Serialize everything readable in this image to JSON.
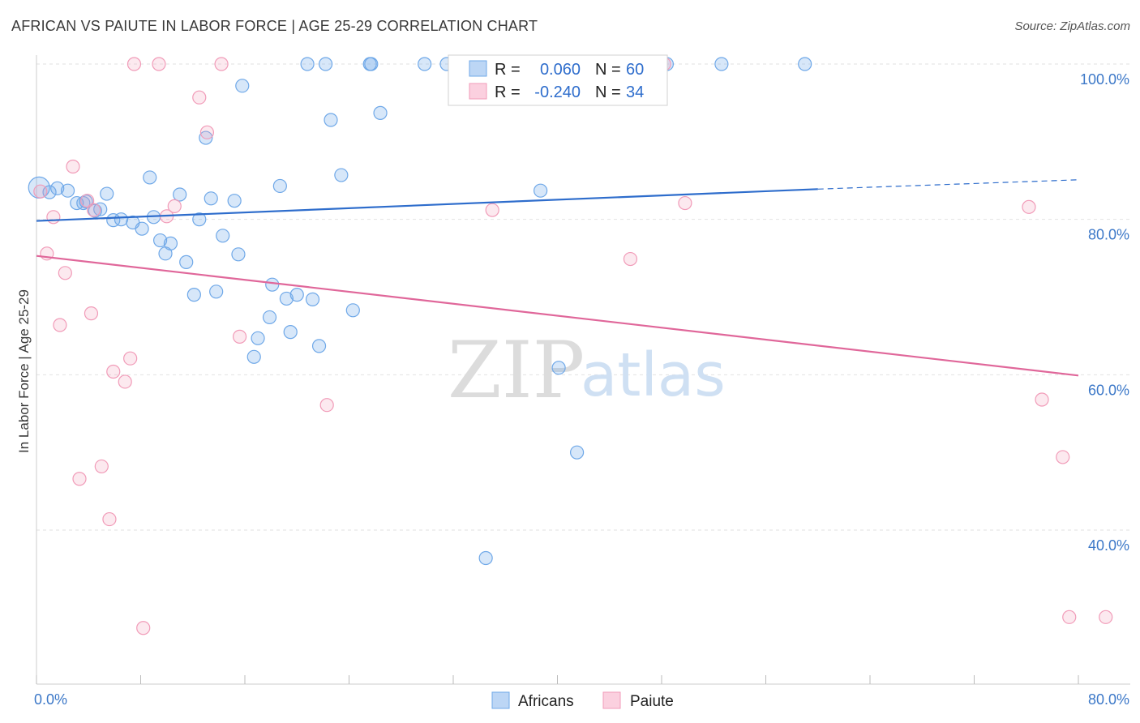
{
  "header": {
    "title": "AFRICAN VS PAIUTE IN LABOR FORCE | AGE 25-29 CORRELATION CHART",
    "source": "Source: ZipAtlas.com"
  },
  "legend": {
    "africans": {
      "r_label": "R =",
      "r_value": "0.060",
      "n_label": "N =",
      "n_value": "60"
    },
    "paiute": {
      "r_label": "R =",
      "r_value": "-0.240",
      "n_label": "N =",
      "n_value": "34"
    }
  },
  "bottom_legend": {
    "africans": "Africans",
    "paiute": "Paiute"
  },
  "watermark": {
    "zip": "ZIP",
    "atlas": "atlas"
  },
  "chart_data": {
    "type": "scatter",
    "title": "AFRICAN VS PAIUTE IN LABOR FORCE | AGE 25-29 CORRELATION CHART",
    "xlabel": "",
    "ylabel": "In Labor Force | Age 25-29",
    "xlim": [
      0,
      80
    ],
    "ylim": [
      20,
      100
    ],
    "x_tick_labels": [
      "0.0%",
      "80.0%"
    ],
    "y_tick_labels": [
      "100.0%",
      "80.0%",
      "60.0%",
      "40.0%"
    ],
    "y_ticks": [
      100,
      80,
      60,
      40
    ],
    "grid": true,
    "colors": {
      "africans": "#6fa8e8",
      "paiute": "#f19bb8",
      "africans_line": "#2e6dcc",
      "paiute_line": "#e0679a"
    },
    "series": [
      {
        "name": "Africans",
        "r": 0.06,
        "n": 60,
        "trend": {
          "x0": 0,
          "y0": 79.8,
          "x1": 60,
          "y1": 83.9,
          "dashed_to_x": 80,
          "dashed_to_y": 85.1
        },
        "points": [
          [
            0.2,
            84.1
          ],
          [
            1.0,
            83.5
          ],
          [
            1.6,
            84.0
          ],
          [
            2.4,
            83.7
          ],
          [
            3.1,
            82.1
          ],
          [
            3.8,
            82.3
          ],
          [
            4.9,
            81.3
          ],
          [
            5.4,
            83.3
          ],
          [
            5.9,
            79.9
          ],
          [
            6.5,
            80.0
          ],
          [
            7.4,
            79.6
          ],
          [
            8.1,
            78.8
          ],
          [
            8.7,
            85.4
          ],
          [
            9.0,
            80.3
          ],
          [
            9.5,
            77.3
          ],
          [
            9.9,
            75.6
          ],
          [
            10.3,
            76.9
          ],
          [
            11.0,
            83.2
          ],
          [
            11.5,
            74.5
          ],
          [
            12.1,
            70.3
          ],
          [
            12.5,
            80.0
          ],
          [
            13.0,
            90.5
          ],
          [
            13.4,
            82.7
          ],
          [
            13.8,
            70.7
          ],
          [
            14.3,
            77.9
          ],
          [
            15.2,
            82.4
          ],
          [
            15.5,
            75.5
          ],
          [
            15.8,
            97.2
          ],
          [
            16.7,
            62.3
          ],
          [
            17.0,
            64.7
          ],
          [
            17.9,
            67.4
          ],
          [
            18.1,
            71.6
          ],
          [
            18.7,
            84.3
          ],
          [
            19.2,
            69.8
          ],
          [
            19.5,
            65.5
          ],
          [
            20.0,
            70.3
          ],
          [
            20.8,
            100.0
          ],
          [
            21.2,
            69.7
          ],
          [
            21.7,
            63.7
          ],
          [
            22.2,
            100.0
          ],
          [
            22.6,
            92.8
          ],
          [
            23.4,
            85.7
          ],
          [
            24.3,
            68.3
          ],
          [
            25.6,
            100.0
          ],
          [
            25.7,
            100.0
          ],
          [
            26.4,
            93.7
          ],
          [
            29.8,
            100.0
          ],
          [
            31.5,
            100.0
          ],
          [
            32.7,
            100.0
          ],
          [
            33.5,
            100.0
          ],
          [
            34.5,
            36.4
          ],
          [
            35.8,
            100.0
          ],
          [
            38.7,
            83.7
          ],
          [
            40.1,
            60.9
          ],
          [
            41.5,
            50.0
          ],
          [
            48.4,
            100.0
          ],
          [
            52.6,
            100.0
          ],
          [
            59.0,
            100.0
          ],
          [
            3.6,
            82.1
          ],
          [
            4.5,
            81.1
          ]
        ]
      },
      {
        "name": "Paiute",
        "r": -0.24,
        "n": 34,
        "trend": {
          "x0": 0,
          "y0": 75.3,
          "x1": 80,
          "y1": 59.9
        },
        "points": [
          [
            0.3,
            83.6
          ],
          [
            0.8,
            75.6
          ],
          [
            1.3,
            80.3
          ],
          [
            1.8,
            66.4
          ],
          [
            2.2,
            73.1
          ],
          [
            2.8,
            86.8
          ],
          [
            3.3,
            46.6
          ],
          [
            3.9,
            82.4
          ],
          [
            4.2,
            67.9
          ],
          [
            4.4,
            81.2
          ],
          [
            5.0,
            48.2
          ],
          [
            5.6,
            41.4
          ],
          [
            5.9,
            60.4
          ],
          [
            6.8,
            59.1
          ],
          [
            7.2,
            62.1
          ],
          [
            8.2,
            27.4
          ],
          [
            9.4,
            100.0
          ],
          [
            10.0,
            80.4
          ],
          [
            10.6,
            81.7
          ],
          [
            12.5,
            95.7
          ],
          [
            13.1,
            91.2
          ],
          [
            14.2,
            100.0
          ],
          [
            15.6,
            64.9
          ],
          [
            22.3,
            56.1
          ],
          [
            35.0,
            81.2
          ],
          [
            45.6,
            74.9
          ],
          [
            48.2,
            100.0
          ],
          [
            49.8,
            82.1
          ],
          [
            76.2,
            81.6
          ],
          [
            77.2,
            56.8
          ],
          [
            78.8,
            49.4
          ],
          [
            79.3,
            28.8
          ],
          [
            82.1,
            28.8
          ],
          [
            7.5,
            100.0
          ]
        ]
      }
    ]
  }
}
